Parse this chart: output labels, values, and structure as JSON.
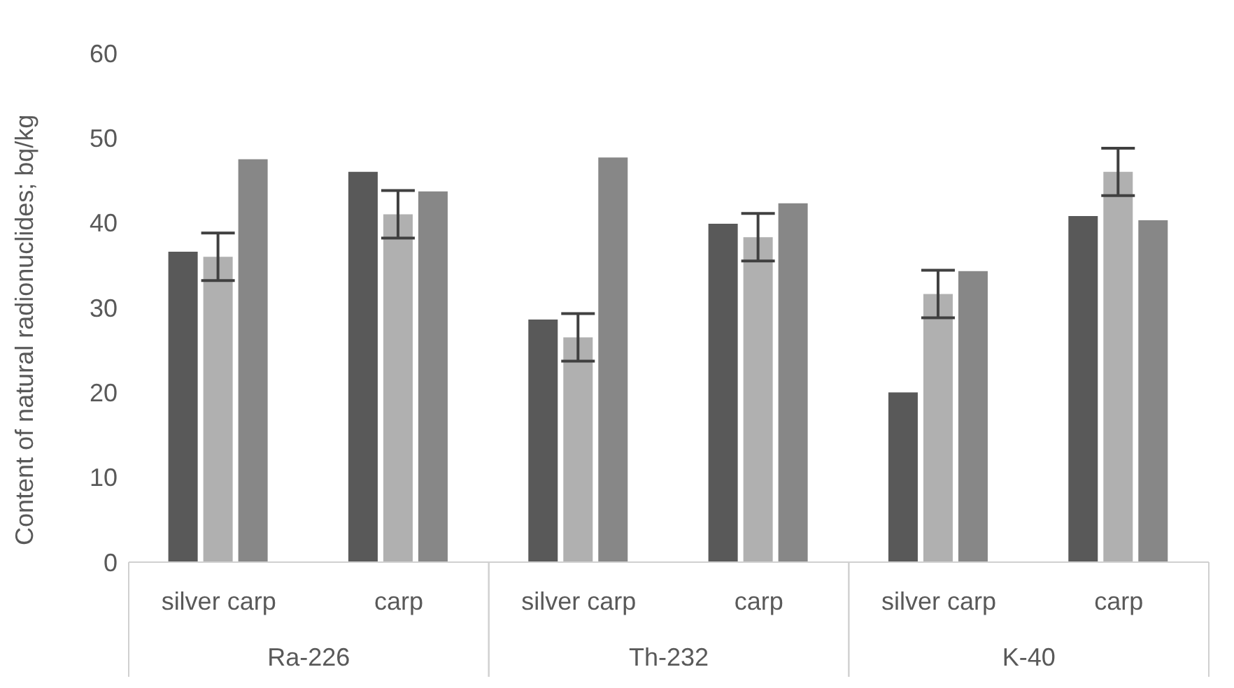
{
  "chart_data": {
    "type": "bar",
    "ylabel": "Content of natural radionuclides; bq/kg",
    "categories": [
      "silver carp",
      "carp",
      "silver carp",
      "carp",
      "silver carp",
      "carp"
    ],
    "annotations": [
      "Ra-226",
      "Th-232",
      "K-40"
    ],
    "series": [
      {
        "color": "#595959",
        "values": [
          36.6,
          46.0,
          28.6,
          39.9,
          20.0,
          40.8
        ]
      },
      {
        "color": "#b0b0b0",
        "values": [
          36.0,
          41.0,
          26.5,
          38.3,
          31.6,
          46.0
        ],
        "errors": [
          2.8,
          2.8,
          2.8,
          2.8,
          2.8,
          2.8
        ]
      },
      {
        "color": "#878787",
        "values": [
          47.5,
          43.7,
          47.7,
          42.3,
          34.3,
          40.3
        ]
      }
    ],
    "ylim": [
      0,
      60
    ],
    "yticks": [
      0,
      10,
      20,
      30,
      40,
      50,
      60
    ],
    "grid": false,
    "legend": false
  }
}
